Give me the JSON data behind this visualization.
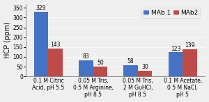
{
  "categories": [
    "0.1 M Citric\nAcid, pH 5.5",
    "0.05 M Tris,\n0.5 M Arginine,\npH 8.5",
    "0.05 M Tris,\n2 M GuHCl,\npH 8.5",
    "0.1 M Acetate,\n0.5 M NaCl,\npH 5"
  ],
  "mab1_values": [
    329,
    83,
    58,
    123
  ],
  "mab2_values": [
    143,
    50,
    30,
    139
  ],
  "mab1_color": "#4472C4",
  "mab2_color": "#BE4B48",
  "ylabel": "HCP (ppm)",
  "ylim": [
    0,
    370
  ],
  "yticks": [
    0,
    50,
    100,
    150,
    200,
    250,
    300,
    350
  ],
  "legend_labels": [
    "MAb 1",
    "MAb2"
  ],
  "bar_width": 0.32,
  "value_fontsize": 5.5,
  "label_fontsize": 6.5,
  "ylabel_fontsize": 7.0,
  "tick_fontsize": 5.5,
  "legend_fontsize": 6.5,
  "bg_color": "#EFEFEF"
}
